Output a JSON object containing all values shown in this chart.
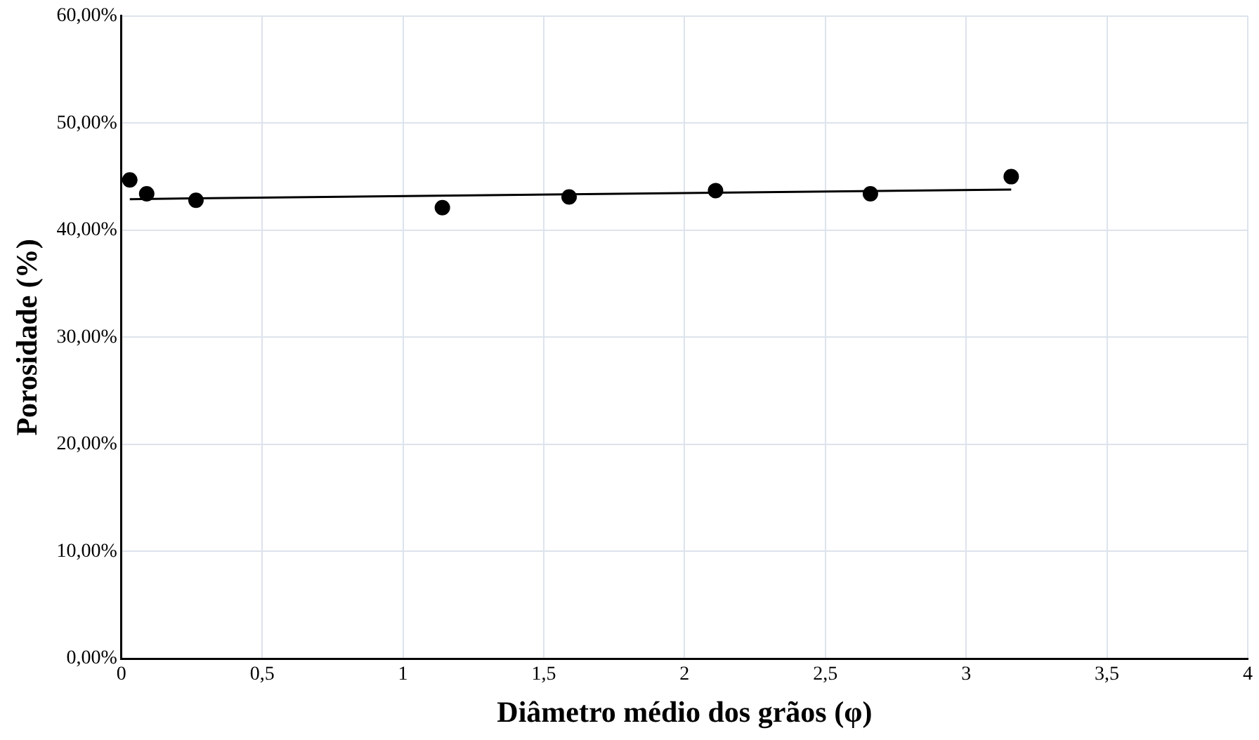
{
  "chart_data": {
    "type": "scatter",
    "xlabel": "Diâmetro médio dos grãos (φ)",
    "ylabel": "Porosidade (%)",
    "series": [
      {
        "color": "#000000",
        "x": [
          0.03,
          0.09,
          0.265,
          1.14,
          1.59,
          2.11,
          2.66,
          3.16
        ],
        "values": [
          44.7,
          43.4,
          42.8,
          42.1,
          43.1,
          43.7,
          43.4,
          45.0
        ]
      },
      {
        "type": "line",
        "color": "#000000",
        "x": [
          0.03,
          3.16
        ],
        "values": [
          42.9,
          43.8
        ],
        "marker": "none"
      }
    ],
    "xlim": [
      0,
      4
    ],
    "xticks": [
      0,
      {
        "value": 0.5,
        "label": "0,5"
      },
      1,
      {
        "value": 1.5,
        "label": "1,5"
      },
      2,
      {
        "value": 2.5,
        "label": "2,5"
      },
      3,
      {
        "value": 3.5,
        "label": "3,5"
      },
      4
    ],
    "ylim": [
      0,
      60
    ],
    "yticks": [
      {
        "value": 0,
        "label": "0,00%"
      },
      {
        "value": 10,
        "label": "10,00%"
      },
      {
        "value": 20,
        "label": "20,00%"
      },
      {
        "value": 30,
        "label": "30,00%"
      },
      {
        "value": 40,
        "label": "40,00%"
      },
      {
        "value": 50,
        "label": "50,00%"
      },
      {
        "value": 60,
        "label": "60,00%"
      }
    ],
    "grid": true,
    "legend": false,
    "marker": "circle"
  }
}
